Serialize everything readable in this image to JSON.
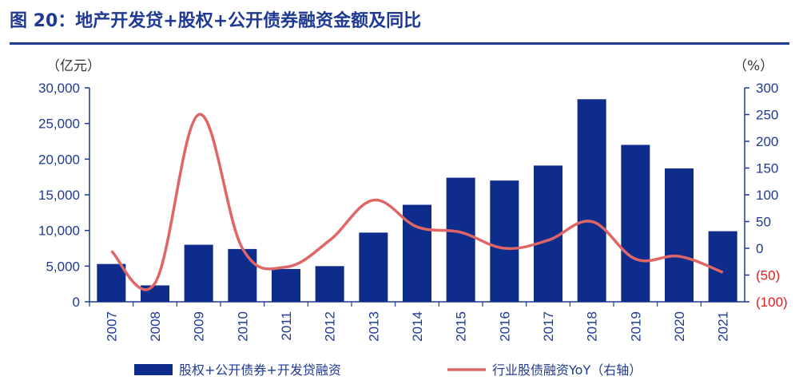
{
  "title": "图 20：地产开发贷+股权+公开债券融资金额及同比",
  "chart_data": {
    "type": "bar",
    "categories": [
      "2007",
      "2008",
      "2009",
      "2010",
      "2011",
      "2012",
      "2013",
      "2014",
      "2015",
      "2016",
      "2017",
      "2018",
      "2019",
      "2020",
      "2021"
    ],
    "series": [
      {
        "name": "股权+公开债券+开发贷融资",
        "type": "bar",
        "axis": "left",
        "color": "#0d2c8c",
        "values": [
          5300,
          2300,
          8000,
          7400,
          4600,
          5000,
          9700,
          13600,
          17400,
          17000,
          19100,
          28400,
          22000,
          18700,
          9900
        ]
      },
      {
        "name": "行业股债融资YoY（右轴）",
        "type": "line",
        "axis": "right",
        "color": "#e06666",
        "values": [
          -5,
          -65,
          250,
          0,
          -35,
          15,
          90,
          40,
          30,
          0,
          15,
          50,
          -20,
          -15,
          -45
        ]
      }
    ],
    "left_axis": {
      "unit": "（亿元）",
      "ylim": [
        0,
        30000
      ],
      "ticks": [
        0,
        5000,
        10000,
        15000,
        20000,
        25000,
        30000
      ],
      "tick_labels": [
        "0",
        "5,000",
        "10,000",
        "15,000",
        "20,000",
        "25,000",
        "30,000"
      ]
    },
    "right_axis": {
      "unit": "（%）",
      "ylim": [
        -100,
        300
      ],
      "ticks": [
        300,
        250,
        200,
        150,
        100,
        50,
        0,
        -50,
        -100
      ],
      "tick_labels": [
        "300",
        "250",
        "200",
        "150",
        "100",
        "50",
        "0",
        "(50)",
        "(100)"
      ]
    },
    "legend_position": "bottom",
    "grid": false
  }
}
